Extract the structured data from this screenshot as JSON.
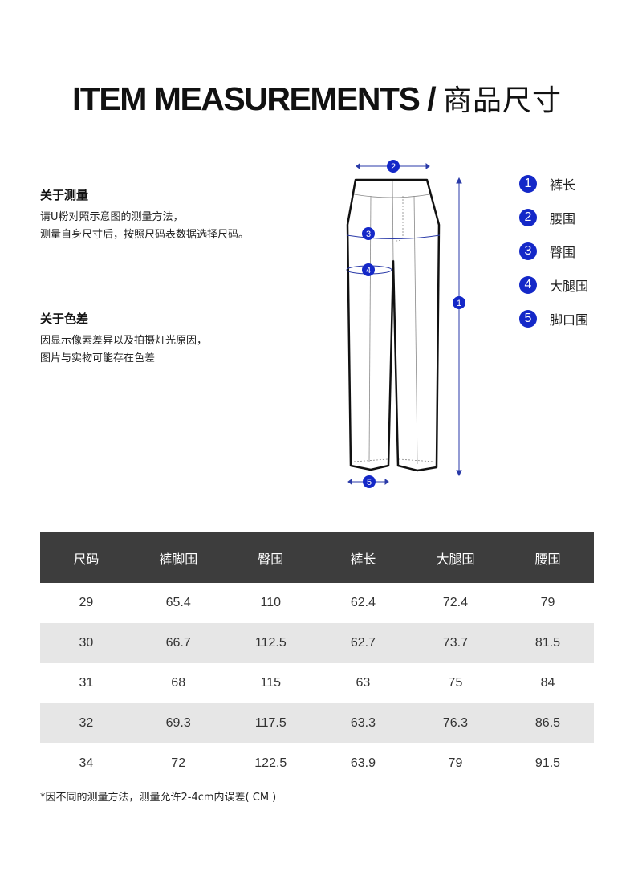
{
  "title": {
    "en": "ITEM MEASUREMENTS / ",
    "cn": "商品尺寸"
  },
  "measure_section": {
    "heading": "关于测量",
    "lines": [
      "请U粉对照示意图的测量方法，",
      "测量自身尺寸后，按照尺码表数据选择尺码。"
    ]
  },
  "color_section": {
    "heading": "关于色差",
    "lines": [
      "因显示像素差异以及拍摄灯光原因，",
      "图片与实物可能存在色差"
    ]
  },
  "diagram": {
    "markers": [
      "1",
      "2",
      "3",
      "4",
      "5"
    ],
    "accent_color": "#1428c8"
  },
  "legend": [
    {
      "num": "1",
      "label": "裤长"
    },
    {
      "num": "2",
      "label": "腰围"
    },
    {
      "num": "3",
      "label": "臀围"
    },
    {
      "num": "4",
      "label": "大腿围"
    },
    {
      "num": "5",
      "label": "脚口围"
    }
  ],
  "table": {
    "headers": [
      "尺码",
      "裤脚围",
      "臀围",
      "裤长",
      "大腿围",
      "腰围"
    ],
    "rows": [
      [
        "29",
        "65.4",
        "110",
        "62.4",
        "72.4",
        "79"
      ],
      [
        "30",
        "66.7",
        "112.5",
        "62.7",
        "73.7",
        "81.5"
      ],
      [
        "31",
        "68",
        "115",
        "63",
        "75",
        "84"
      ],
      [
        "32",
        "69.3",
        "117.5",
        "63.3",
        "76.3",
        "86.5"
      ],
      [
        "34",
        "72",
        "122.5",
        "63.9",
        "79",
        "91.5"
      ]
    ]
  },
  "note": "*因不同的测量方法，测量允许2-4cm内误差( CM )"
}
